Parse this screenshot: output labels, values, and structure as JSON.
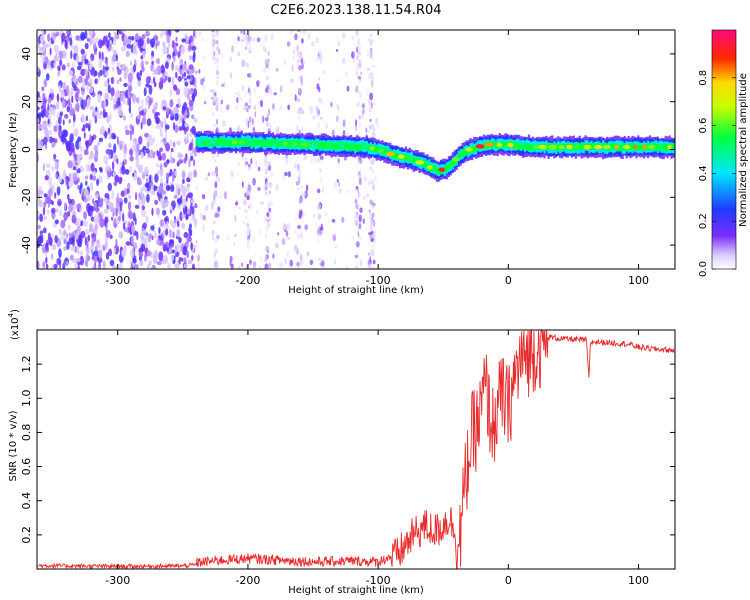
{
  "figure_title": "C2E6.2023.138.11.54.R04",
  "colors": {
    "snr_line": "#e82c2c",
    "spectral_low": "#7b2cff",
    "spectral_high": "#ff1a1a"
  },
  "chart_data": [
    {
      "type": "heatmap",
      "title": "",
      "xlabel": "Height of straight line (km)",
      "ylabel": "Frequency (Hz)",
      "xlim": [
        -362,
        128
      ],
      "ylim": [
        -50,
        50
      ],
      "xticks": [
        -300,
        -200,
        -100,
        0,
        100
      ],
      "yticks": [
        -40,
        -20,
        0,
        20,
        40
      ],
      "grid": false,
      "colorbar": {
        "label": "Normalized spectral amplitude",
        "range": [
          0.0,
          1.0
        ],
        "ticks": [
          0.0,
          0.2,
          0.4,
          0.6,
          0.8
        ],
        "colormap": "rainbow (purple-blue-cyan-green-yellow-red-magenta)"
      },
      "noise_region_x": [
        -362,
        -240
      ],
      "sparse_noise_region_x": [
        -240,
        -100
      ],
      "signal_track": {
        "x": [
          -240,
          -200,
          -150,
          -110,
          -100,
          -90,
          -75,
          -65,
          -55,
          -48,
          -42,
          -35,
          -25,
          -15,
          -5,
          0,
          20,
          50,
          80,
          100,
          128
        ],
        "y": [
          3,
          3,
          2,
          1,
          0,
          -2,
          -4,
          -6,
          -9,
          -8,
          -5,
          -1,
          1,
          2,
          2,
          2,
          1,
          1,
          1,
          1,
          1
        ],
        "amplitude": [
          0.5,
          0.6,
          0.6,
          0.6,
          0.6,
          0.8,
          0.7,
          0.8,
          0.9,
          0.8,
          0.7,
          0.8,
          0.9,
          0.9,
          0.8,
          0.8,
          0.6,
          0.7,
          0.8,
          0.9,
          0.6
        ]
      }
    },
    {
      "type": "line",
      "title": "",
      "xlabel": "Height of straight line (km)",
      "ylabel": "SNR (10 * v/v)",
      "multiplier_label": "(x10",
      "multiplier_exp": "4",
      "multiplier_close": ")",
      "xlim": [
        -362,
        128
      ],
      "ylim": [
        0,
        14000
      ],
      "xticks": [
        -300,
        -200,
        -100,
        0,
        100
      ],
      "yticks": [
        2000,
        4000,
        6000,
        8000,
        10000,
        12000
      ],
      "ytick_labels": [
        "0.2",
        "0.4",
        "0.6",
        "0.8",
        "1.0",
        "1.2"
      ],
      "grid": false,
      "series": [
        {
          "x": [
            -362,
            -300,
            -250,
            -220,
            -200,
            -150,
            -120,
            -100,
            -85,
            -75,
            -65,
            -55,
            -45,
            -38,
            -32,
            -28,
            -22,
            -18,
            -12,
            -5,
            0,
            5,
            10,
            20,
            30,
            40,
            60,
            62,
            63,
            70,
            90,
            100,
            110,
            128
          ],
          "y": [
            200,
            150,
            180,
            400,
            500,
            300,
            350,
            300,
            800,
            1800,
            2500,
            2200,
            3000,
            1500,
            6000,
            8000,
            9000,
            11000,
            8500,
            10500,
            9500,
            11500,
            12500,
            13200,
            13600,
            13500,
            13400,
            11000,
            13300,
            13300,
            13200,
            13000,
            12900,
            12800
          ]
        }
      ]
    }
  ]
}
